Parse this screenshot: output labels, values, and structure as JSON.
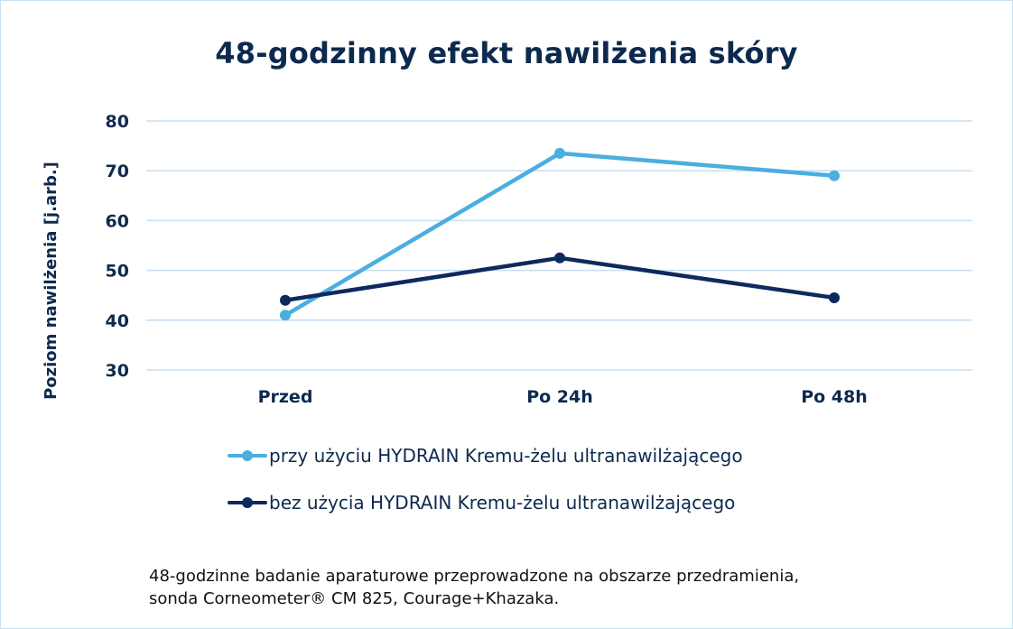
{
  "colors": {
    "series1": "#4aaee0",
    "series2": "#0d2a5e",
    "grid": "#c9def0",
    "text": "#0d2a4e"
  },
  "chart_data": {
    "type": "line",
    "title": "48-godzinny efekt nawilżenia skóry",
    "ylabel": "Poziom nawilżenia [j.arb.]",
    "xlabel": "",
    "categories": [
      "Przed",
      "Po 24h",
      "Po 48h"
    ],
    "ylim": [
      30,
      80
    ],
    "yticks": [
      30,
      40,
      50,
      60,
      70,
      80
    ],
    "grid": true,
    "legend_position": "bottom",
    "series": [
      {
        "name": "przy użyciu HYDRAIN Kremu-żelu ultranawilżającego",
        "values": [
          41,
          73.5,
          69
        ],
        "color": "#4aaee0"
      },
      {
        "name": "bez użycia HYDRAIN Kremu-żelu ultranawilżającego",
        "values": [
          44,
          52.5,
          44.5
        ],
        "color": "#0d2a5e"
      }
    ]
  },
  "footnote": {
    "line1": "48-godzinne badanie aparaturowe przeprowadzone na obszarze przedramienia,",
    "line2": "sonda Corneometer® CM 825, Courage+Khazaka."
  }
}
